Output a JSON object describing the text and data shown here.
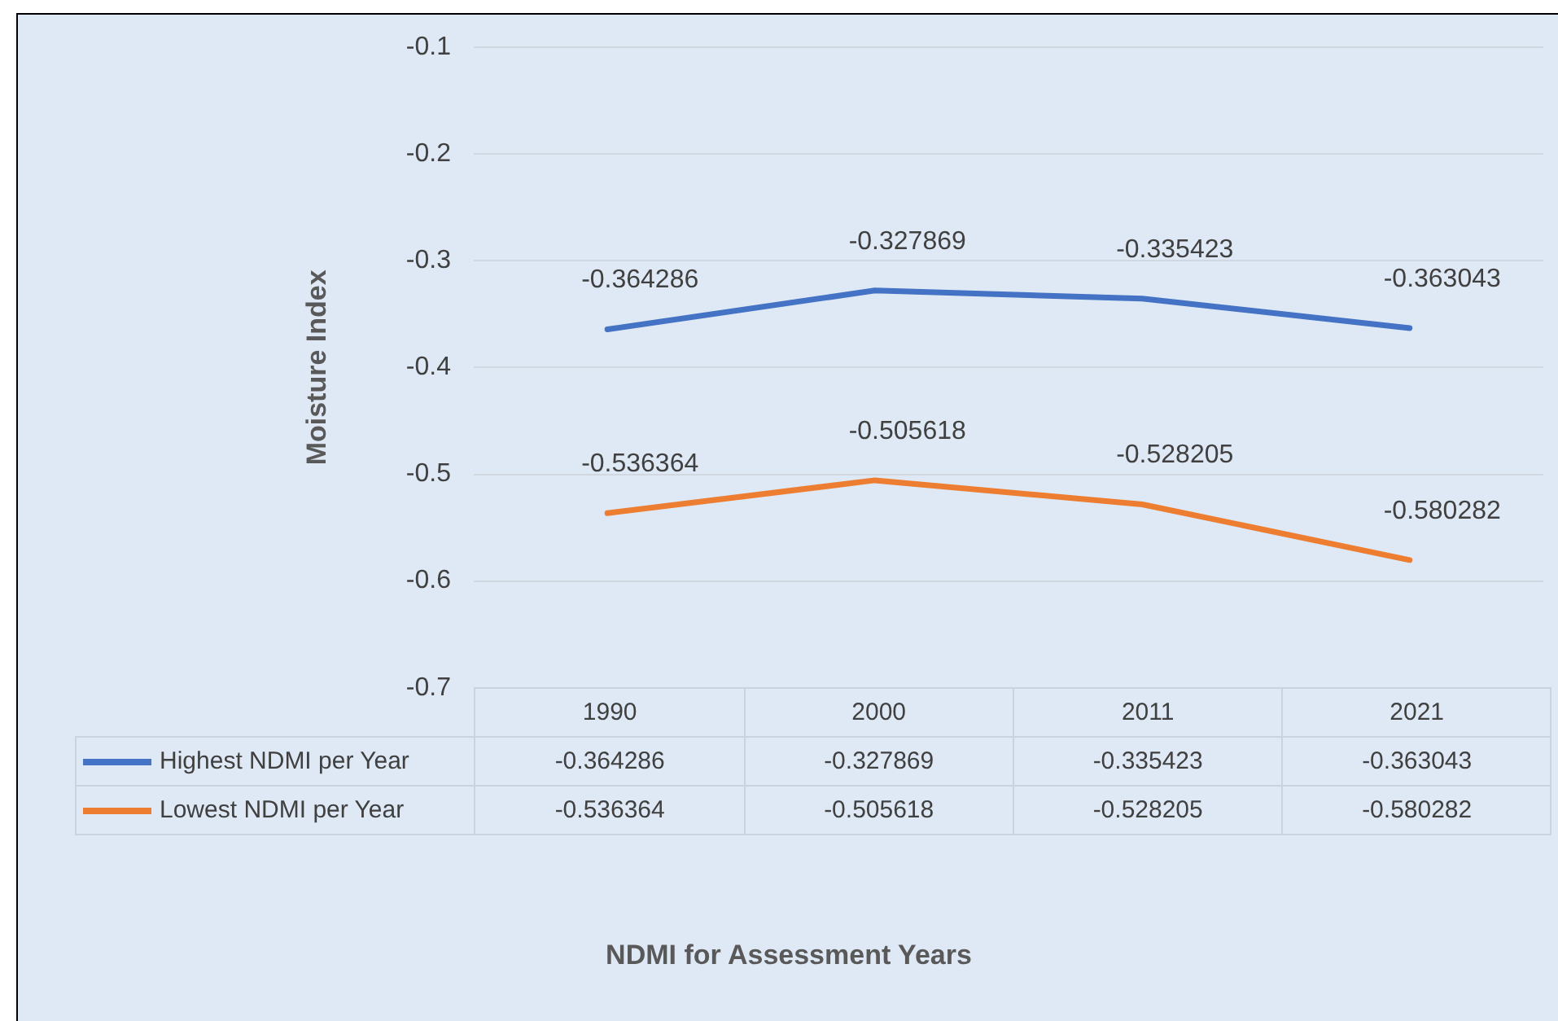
{
  "chart_data": {
    "type": "line",
    "ylabel": "Moisture Index",
    "categories": [
      "1990",
      "2000",
      "2011",
      "2021"
    ],
    "series": [
      {
        "name": "Highest NDMI per Year",
        "color": "#4472c4",
        "values": [
          -0.364286,
          -0.327869,
          -0.335423,
          -0.363043
        ]
      },
      {
        "name": "Lowest NDMI per Year",
        "color": "#ed7d31",
        "values": [
          -0.536364,
          -0.505618,
          -0.528205,
          -0.580282
        ]
      }
    ],
    "ylim": [
      -0.7,
      -0.1
    ],
    "yticks": [
      -0.7,
      -0.6,
      -0.5,
      -0.4,
      -0.3,
      -0.2,
      -0.1
    ],
    "grid": "y",
    "legend": "bottom",
    "data_labels": true,
    "annotations": [
      "-0.364286",
      "-0.327869",
      "-0.335423",
      "-0.363043",
      "-0.536364",
      "-0.505618",
      "-0.528205",
      "-0.580282",
      "NDMI for Assessment Years"
    ],
    "marker": "none",
    "line_style": "solid"
  }
}
